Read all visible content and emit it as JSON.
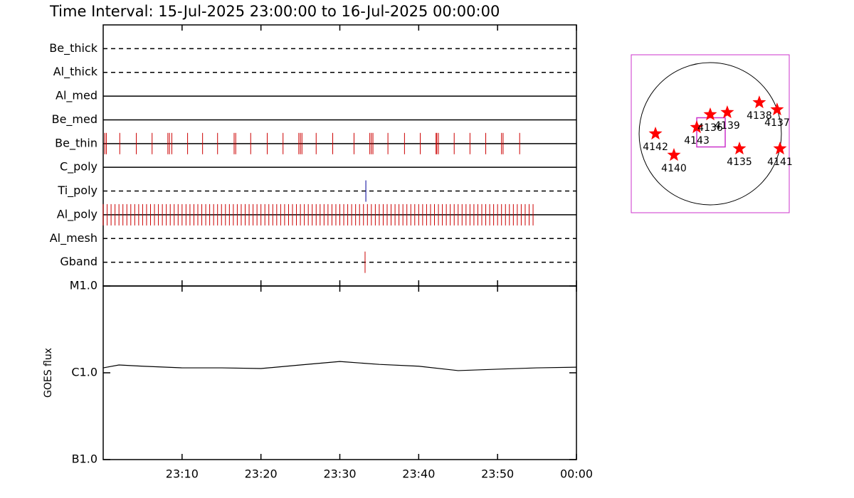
{
  "title": "Time Interval: 15-Jul-2025 23:00:00 to 16-Jul-2025 00:00:00",
  "timeline": {
    "xlim": [
      0,
      60
    ],
    "xticks": [
      {
        "value": 10,
        "label": "23:10"
      },
      {
        "value": 20,
        "label": "23:20"
      },
      {
        "value": 30,
        "label": "23:30"
      },
      {
        "value": 40,
        "label": "23:40"
      },
      {
        "value": 50,
        "label": "23:50"
      },
      {
        "value": 60,
        "label": "00:00"
      }
    ],
    "channels": [
      {
        "name": "Be_thick",
        "line": "dashed",
        "color": "#cc0000",
        "events": []
      },
      {
        "name": "Al_thick",
        "line": "dashed",
        "color": "#cc0000",
        "events": []
      },
      {
        "name": "Al_med",
        "line": "solid",
        "color": "#cc0000",
        "events": []
      },
      {
        "name": "Be_med",
        "line": "solid",
        "color": "#cc0000",
        "events": []
      },
      {
        "name": "Be_thin",
        "line": "solid",
        "color": "#cc0000",
        "events": [
          0.2,
          0.4,
          2.1,
          4.2,
          6.2,
          8.2,
          8.4,
          8.7,
          10.7,
          12.6,
          14.5,
          16.6,
          16.8,
          18.7,
          20.8,
          22.8,
          24.8,
          25.0,
          25.2,
          27.0,
          29.1,
          31.8,
          33.8,
          34.0,
          34.2,
          36.1,
          38.2,
          40.2,
          42.2,
          42.3,
          42.5,
          44.5,
          46.5,
          48.5,
          50.5,
          50.7,
          52.8
        ]
      },
      {
        "name": "C_poly",
        "line": "solid",
        "color": "#cc0000",
        "events": []
      },
      {
        "name": "Ti_poly",
        "line": "dashed",
        "color": "#000099",
        "events": [
          33.3
        ]
      },
      {
        "name": "Al_poly",
        "line": "solid",
        "color": "#cc0000",
        "events": [
          0,
          0.5,
          1,
          1.5,
          2,
          2.5,
          3,
          3.5,
          4,
          4.5,
          5,
          5.5,
          6,
          6.5,
          7,
          7.5,
          8,
          8.5,
          9,
          9.5,
          10,
          10.5,
          11,
          11.5,
          12,
          12.5,
          13,
          13.5,
          14,
          14.5,
          15,
          15.5,
          16,
          16.5,
          17,
          17.5,
          18,
          18.5,
          19,
          19.5,
          20,
          20.5,
          21,
          21.5,
          22,
          22.5,
          23,
          23.5,
          24,
          24.5,
          25,
          25.5,
          26,
          26.5,
          27,
          27.5,
          28,
          28.5,
          29,
          29.5,
          30,
          30.5,
          31,
          31.5,
          32,
          32.5,
          33,
          33.5,
          34,
          34.5,
          35,
          35.5,
          36,
          36.5,
          37,
          37.5,
          38,
          38.5,
          39,
          39.5,
          40,
          40.5,
          41,
          41.5,
          42,
          42.5,
          43,
          43.5,
          44,
          44.5,
          45,
          45.5,
          46,
          46.5,
          47,
          47.5,
          48,
          48.5,
          49,
          49.5,
          50,
          50.5,
          51,
          51.5,
          52,
          52.5,
          53,
          53.5,
          54,
          54.5
        ]
      },
      {
        "name": "Al_mesh",
        "line": "dashed",
        "color": "#cc0000",
        "events": []
      },
      {
        "name": "Gband",
        "line": "dashed",
        "color": "#cc0000",
        "events": [
          33.2
        ]
      }
    ]
  },
  "goes": {
    "type": "line",
    "ylabel": "GOES flux",
    "log_scale": true,
    "ylim": [
      1e-07,
      1e-05
    ],
    "yticks": [
      {
        "value": 1e-07,
        "label": "B1.0"
      },
      {
        "value": 1e-06,
        "label": "C1.0"
      },
      {
        "value": 1e-05,
        "label": "M1.0"
      }
    ],
    "x": [
      0,
      2,
      5,
      10,
      15,
      20,
      25,
      30,
      35,
      40,
      45,
      50,
      55,
      60
    ],
    "values": [
      1.14e-06,
      1.23e-06,
      1.19e-06,
      1.14e-06,
      1.14e-06,
      1.12e-06,
      1.23e-06,
      1.35e-06,
      1.25e-06,
      1.19e-06,
      1.06e-06,
      1.1e-06,
      1.14e-06,
      1.16e-06
    ],
    "color": "#000000"
  },
  "sun_map": {
    "xlim": [
      -1066,
      1066
    ],
    "ylim": [
      -1066,
      1066
    ],
    "disk_radius": 960,
    "fov": {
      "center": [
        10,
        19
      ],
      "size": [
        384,
        394
      ]
    },
    "regions": [
      {
        "label": "4142",
        "x": -739,
        "y": 0
      },
      {
        "label": "4140",
        "x": -490,
        "y": -288
      },
      {
        "label": "4143",
        "x": -182,
        "y": 86
      },
      {
        "label": "4136",
        "x": 0,
        "y": 259
      },
      {
        "label": "4139",
        "x": 230,
        "y": 288
      },
      {
        "label": "4138",
        "x": 662,
        "y": 422
      },
      {
        "label": "4137",
        "x": 902,
        "y": 326
      },
      {
        "label": "4135",
        "x": 394,
        "y": -202
      },
      {
        "label": "4141",
        "x": 941,
        "y": -202
      }
    ]
  }
}
